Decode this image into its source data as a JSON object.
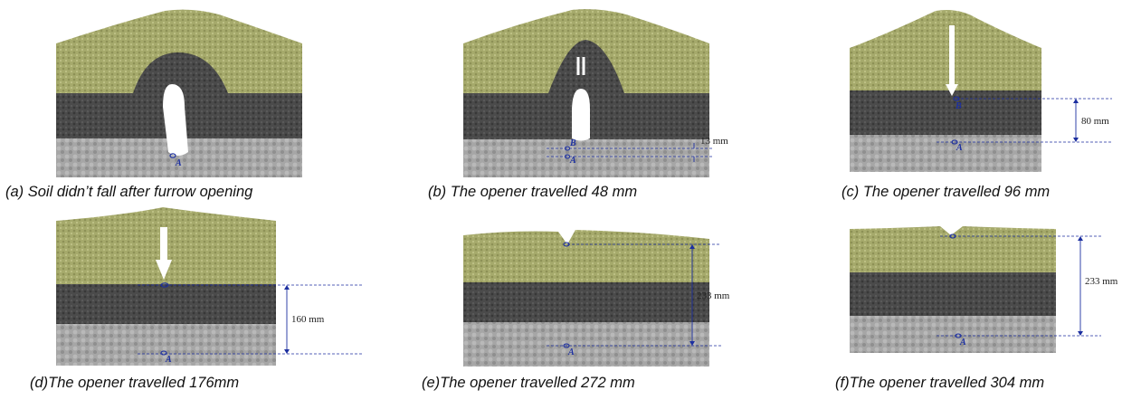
{
  "panels": [
    {
      "id": "a",
      "caption": "(a) Soil didn’t fall after furrow opening",
      "point_labels": [
        "A"
      ],
      "dimension": ""
    },
    {
      "id": "b",
      "caption": "(b) The opener travelled 48 mm",
      "point_labels": [
        "B",
        "A"
      ],
      "dimension": "13 mm"
    },
    {
      "id": "c",
      "caption": "(c) The opener travelled 96 mm",
      "point_labels": [
        "B",
        "A"
      ],
      "dimension": "80 mm"
    },
    {
      "id": "d",
      "caption": "(d)The opener travelled 176mm",
      "point_labels": [
        "A"
      ],
      "dimension": "160 mm"
    },
    {
      "id": "e",
      "caption": "(e)The opener travelled 272 mm",
      "point_labels": [
        "A"
      ],
      "dimension": "233 mm"
    },
    {
      "id": "f",
      "caption": "(f)The opener travelled 304 mm",
      "point_labels": [
        "A"
      ],
      "dimension": "233 mm"
    }
  ],
  "colors": {
    "top_soil": "#a6aa6c",
    "middle_soil": "#4b4b4b",
    "bottom_soil": "#a6a6a6",
    "furrow_void": "#ffffff",
    "marker_blue": "#1c2fa0"
  }
}
